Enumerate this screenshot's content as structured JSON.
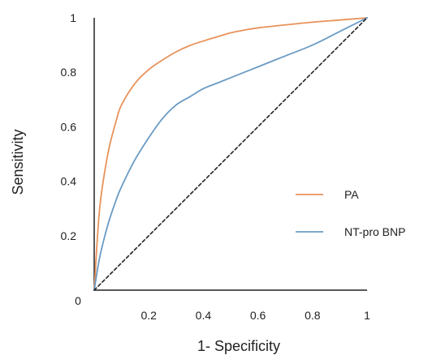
{
  "chart_data": {
    "type": "line",
    "title": "",
    "xlabel": "1- Specificity",
    "ylabel": "Sensitivity",
    "xlim": [
      0,
      1
    ],
    "ylim": [
      0,
      1
    ],
    "x_ticks": [
      0.2,
      0.4,
      0.6,
      0.8,
      1
    ],
    "x_tick_labels": [
      "0.2",
      "0.4",
      "0.6",
      "0.8",
      "1"
    ],
    "y_ticks": [
      0.2,
      0.4,
      0.6,
      0.8,
      1
    ],
    "y_tick_labels": [
      "0.2",
      "0.4",
      "0.6",
      "0.8",
      "1"
    ],
    "origin_label": "0",
    "grid": false,
    "legend_position": "center-right",
    "series": [
      {
        "name": "PA",
        "color": "#E8925A",
        "x": [
          0,
          0.02,
          0.05,
          0.08,
          0.1,
          0.15,
          0.2,
          0.25,
          0.3,
          0.35,
          0.4,
          0.45,
          0.5,
          0.55,
          0.6,
          0.7,
          0.8,
          0.9,
          1.0
        ],
        "y": [
          0,
          0.3,
          0.5,
          0.62,
          0.68,
          0.76,
          0.81,
          0.845,
          0.875,
          0.898,
          0.915,
          0.93,
          0.945,
          0.955,
          0.963,
          0.974,
          0.984,
          0.992,
          1.0
        ]
      },
      {
        "name": "NT-pro BNP",
        "color": "#6A9BC3",
        "x": [
          0,
          0.02,
          0.05,
          0.08,
          0.1,
          0.15,
          0.2,
          0.25,
          0.3,
          0.35,
          0.4,
          0.45,
          0.5,
          0.55,
          0.6,
          0.7,
          0.8,
          0.9,
          1.0
        ],
        "y": [
          0,
          0.12,
          0.24,
          0.33,
          0.38,
          0.48,
          0.56,
          0.63,
          0.68,
          0.71,
          0.74,
          0.76,
          0.78,
          0.8,
          0.82,
          0.86,
          0.9,
          0.95,
          1.0
        ]
      },
      {
        "name": "",
        "color": "#222222",
        "dashed": true,
        "x": [
          0,
          1
        ],
        "y": [
          0,
          1
        ]
      }
    ]
  }
}
